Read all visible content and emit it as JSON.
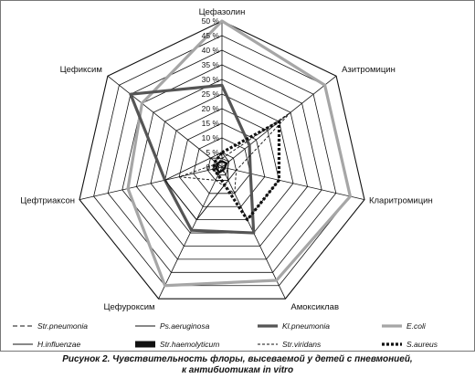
{
  "chart_data": {
    "type": "radar",
    "axes": [
      "Цефазолин",
      "Азитромицин",
      "Кларитромицин",
      "Амоксиклав",
      "Цефуроксим",
      "Цефтриаксон",
      "Цефиксим"
    ],
    "ticks": [
      "0 %",
      "5 %",
      "10 %",
      "15 %",
      "20 %",
      "25 %",
      "30 %",
      "35 %",
      "40 %",
      "45 %",
      "50 %"
    ],
    "rlim": [
      0,
      50
    ],
    "grid": true,
    "legend_position": "bottom",
    "series": [
      {
        "name": "Str.pneumonia",
        "color": "#111111",
        "style": "dash",
        "values": [
          2,
          2,
          1,
          2,
          1,
          1,
          2
        ]
      },
      {
        "name": "Ps.aeruginosa",
        "color": "#111111",
        "style": "solid-thin",
        "values": [
          5,
          3,
          2,
          3,
          3,
          3,
          3
        ]
      },
      {
        "name": "Kl.pneumonia",
        "color": "#555555",
        "style": "solid-thick",
        "values": [
          28,
          12,
          10,
          25,
          24,
          20,
          40
        ]
      },
      {
        "name": "E.coli",
        "color": "#a6a6a6",
        "style": "solid-thick",
        "values": [
          50,
          45,
          45,
          43,
          45,
          33,
          35
        ]
      },
      {
        "name": "H.influenzae",
        "color": "#111111",
        "style": "solid-thin",
        "values": [
          3,
          3,
          2,
          5,
          20,
          20,
          5
        ]
      },
      {
        "name": "Str.haemolyticum",
        "color": "#111111",
        "style": "solid-heavy",
        "values": [
          2,
          2,
          1,
          1,
          2,
          2,
          2
        ]
      },
      {
        "name": "Str.viridans",
        "color": "#111111",
        "style": "dash-thin",
        "values": [
          3,
          30,
          5,
          10,
          5,
          15,
          2
        ]
      },
      {
        "name": "S.aureus",
        "color": "#111111",
        "style": "dot-heavy",
        "values": [
          5,
          25,
          20,
          20,
          3,
          3,
          3
        ]
      }
    ]
  },
  "caption": {
    "line1": "Рисунок 2. Чувствительность флоры, высеваемой у детей с пневмонией,",
    "line2": "к антибиотикам in vitro"
  }
}
